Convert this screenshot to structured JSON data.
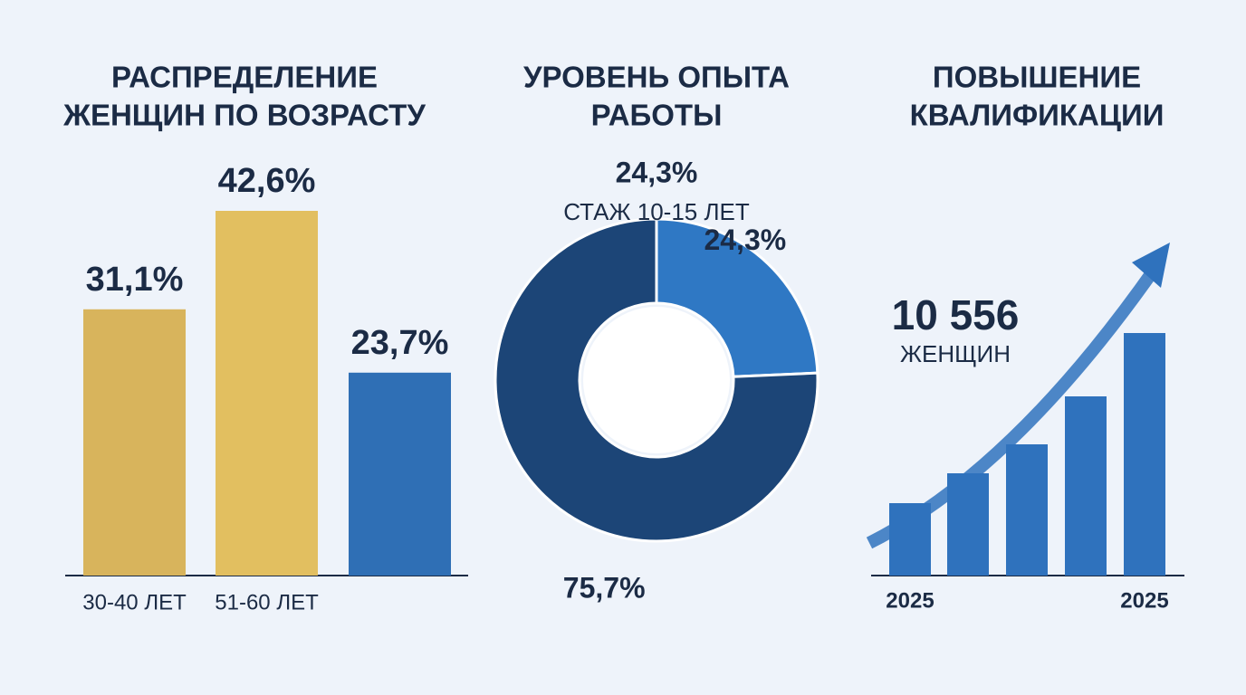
{
  "chart_data": [
    {
      "type": "bar",
      "title": [
        "РАСПРЕДЕЛЕНИЕ",
        "ЖЕНЩИН ПО ВОЗРАСТУ"
      ],
      "categories": [
        "30-40 ЛЕТ",
        "51-60 ЛЕТ",
        null
      ],
      "values": [
        31.1,
        42.6,
        23.7
      ],
      "value_labels": [
        "31,1%",
        "42,6%",
        "23,7%"
      ],
      "colors": [
        "#d8b45c",
        "#e2bf60",
        "#2f6fb5"
      ]
    },
    {
      "type": "donut",
      "title": [
        "УРОВЕНЬ ОПЫТА",
        "РАБОТЫ"
      ],
      "categories": [
        "СТАЖ 10-15 ЛЕТ",
        null
      ],
      "values": [
        24.3,
        75.7
      ],
      "value_labels": [
        "24,3%",
        "75,7%"
      ],
      "colors": [
        "#2f78c4",
        "#1c4577"
      ]
    },
    {
      "type": "bar",
      "title": [
        "ПОВЫШЕНИЕ",
        "КВАЛИФИКАЦИИ"
      ],
      "categories": [
        "2025",
        null,
        null,
        null,
        "2025"
      ],
      "values": [
        80,
        113,
        145,
        198,
        268
      ],
      "colors": [
        "#2f72bd",
        "#2f72bd",
        "#2f72bd",
        "#2f72bd",
        "#2f72bd"
      ],
      "annotations": [
        "10 556",
        "ЖЕНЩИН"
      ]
    }
  ]
}
